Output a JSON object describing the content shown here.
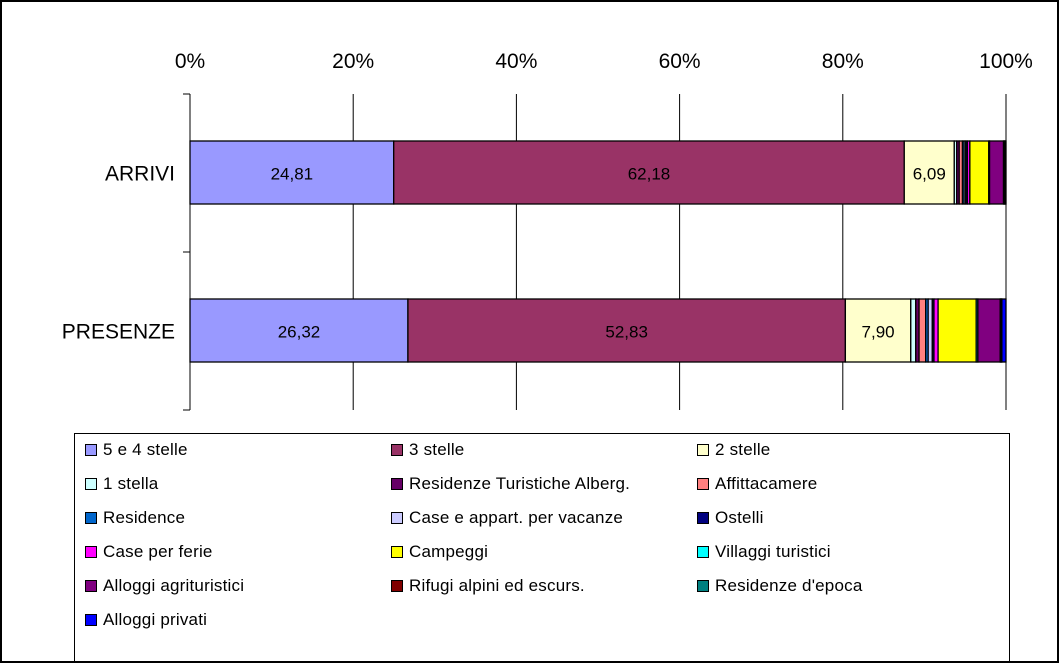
{
  "chart_data": {
    "type": "bar",
    "orientation": "horizontal",
    "stacked": "100%",
    "categories": [
      "ARRIVI",
      "PRESENZE"
    ],
    "x_ticks": [
      "0%",
      "20%",
      "40%",
      "60%",
      "80%",
      "100%"
    ],
    "xlim": [
      0,
      100
    ],
    "grid": true,
    "legend_position": "bottom",
    "series": [
      {
        "name": "5 e 4 stelle",
        "color": "#9999ff",
        "values": [
          24.81,
          26.32
        ],
        "labels": [
          "24,81",
          "26,32"
        ]
      },
      {
        "name": "3 stelle",
        "color": "#993366",
        "values": [
          62.18,
          52.83
        ],
        "labels": [
          "62,18",
          "52,83"
        ]
      },
      {
        "name": "2 stelle",
        "color": "#ffffcc",
        "values": [
          6.09,
          7.9
        ],
        "labels": [
          "6,09",
          "7,90"
        ]
      },
      {
        "name": "1 stella",
        "color": "#ccffff",
        "values": [
          0.3,
          0.6
        ],
        "labels": [
          "",
          ""
        ]
      },
      {
        "name": "Residenze Turistiche Alberg.",
        "color": "#660066",
        "values": [
          0.3,
          0.4
        ],
        "labels": [
          "",
          ""
        ]
      },
      {
        "name": "Affittacamere",
        "color": "#ff8080",
        "values": [
          0.4,
          0.8
        ],
        "labels": [
          "",
          ""
        ]
      },
      {
        "name": "Residence",
        "color": "#0066cc",
        "values": [
          0.2,
          0.3
        ],
        "labels": [
          "",
          ""
        ]
      },
      {
        "name": "Case e appart. per vacanze",
        "color": "#ccccff",
        "values": [
          0.2,
          0.5
        ],
        "labels": [
          "",
          ""
        ]
      },
      {
        "name": "Ostelli",
        "color": "#000080",
        "values": [
          0.2,
          0.2
        ],
        "labels": [
          "",
          ""
        ]
      },
      {
        "name": "Case per ferie",
        "color": "#ff00ff",
        "values": [
          0.3,
          0.5
        ],
        "labels": [
          "",
          ""
        ]
      },
      {
        "name": "Campeggi",
        "color": "#ffff00",
        "values": [
          2.3,
          4.6
        ],
        "labels": [
          "",
          ""
        ]
      },
      {
        "name": "Villaggi turistici",
        "color": "#00ffff",
        "values": [
          0.1,
          0.2
        ],
        "labels": [
          "",
          ""
        ]
      },
      {
        "name": "Alloggi agrituristici",
        "color": "#800080",
        "values": [
          1.7,
          2.7
        ],
        "labels": [
          "",
          ""
        ]
      },
      {
        "name": "Rifugi alpini ed escurs.",
        "color": "#800000",
        "values": [
          0.1,
          0.1
        ],
        "labels": [
          "",
          ""
        ]
      },
      {
        "name": "Residenze d'epoca",
        "color": "#008080",
        "values": [
          0.1,
          0.1
        ],
        "labels": [
          "",
          ""
        ]
      },
      {
        "name": "Alloggi privati",
        "color": "#0000ff",
        "values": [
          0.1,
          0.5
        ],
        "labels": [
          "",
          ""
        ]
      }
    ]
  }
}
